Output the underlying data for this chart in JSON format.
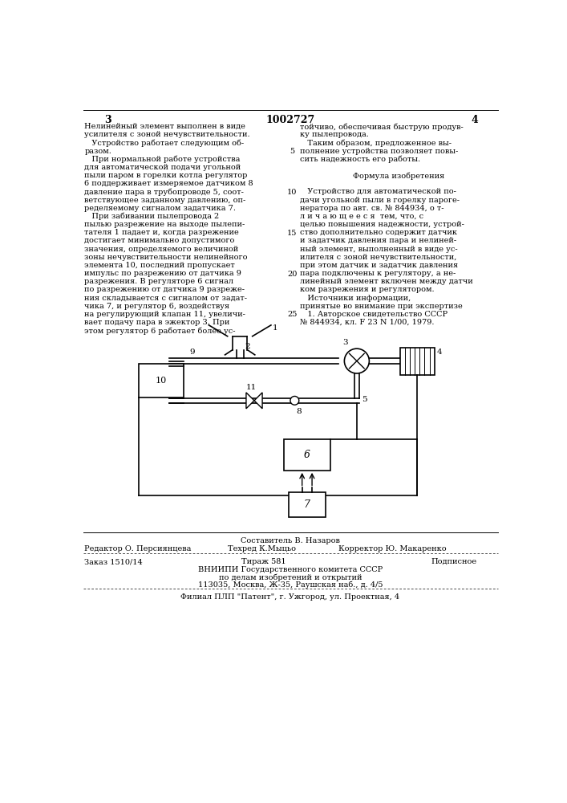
{
  "bg_color": "#ffffff",
  "page_number_left": "3",
  "page_number_center": "1002727",
  "page_number_right": "4",
  "col1_lines": [
    "Нелинейный элемент выполнен в виде",
    "усилителя с зоной нечувствительности.",
    "   Устройство работает следующим об-",
    "разом.",
    "   При нормальной работе устройства",
    "для автоматической подачи угольной",
    "пыли паром в горелки котла регулятор",
    "6 поддерживает измеряемое датчиком 8",
    "давление пара в трубопроводе 5, соот-",
    "ветствующее заданному давлению, оп-",
    "ределяемому сигналом задатчика 7.",
    "   При забивании пылепровода 2",
    "пылью разрежение на выходе пылепи-",
    "тателя 1 падает и, когда разрежение",
    "достигает минимально допустимого",
    "значения, определяемого величиной",
    "зоны нечувствительности нелинейного",
    "элемента 10, последний пропускает",
    "импульс по разрежению от датчика 9",
    "разрежения. В регуляторе 6 сигнал",
    "по разрежению от датчика 9 разреже-",
    "ния складывается с сигналом от задат-",
    "чика 7, и регулятор 6, воздействуя",
    "на регулирующий клапан 11, увеличи-",
    "вает подачу пара в эжектор 3. При",
    "этом регулятор 6 работает более ус-"
  ],
  "col2_lines": [
    "тойчиво, обеспечивая быструю продув-",
    "ку пылепровода.",
    "   Таким образом, предложенное вы-",
    "полнение устройства позволяет повы-",
    "сить надежность его работы.",
    "",
    "Формула изобретения",
    "",
    "   Устройство для автоматической по-",
    "дачи угольной пыли в горелку парогe-",
    "нератора по авт. св. № 844934, о т-",
    "л и ч а ю щ е е с я  тем, что, с",
    "целью повышения надежности, устрой-",
    "ство дополнительно содержит датчик",
    "и задатчик давления пара и нелиней-",
    "ный элемент, выполненный в виде ус-",
    "илителя с зоной нечувствительности,",
    "при этом датчик и задатчик давления",
    "пара подключены к регулятору, а не-",
    "линейный элемент включен между датчи",
    "ком разрежения и регулятором.",
    "   Источники информации,",
    "принятые во внимание при экспертизе",
    "   1. Авторское свидетельство СССР",
    "№ 844934, кл. F 23 N 1/00, 1979."
  ],
  "line_numbers": [
    "5",
    "10",
    "15",
    "20",
    "25"
  ],
  "line_number_rows": [
    4,
    9,
    14,
    19,
    24
  ],
  "footer_composer": "Составитель В. Назаров",
  "footer_editor": "Редактор О. Персиянцева",
  "footer_techred": "Техред К.Мыцьо",
  "footer_corrector": "Корректор Ю. Макаренко",
  "footer_order": "Заказ 1510/14",
  "footer_tirazh": "Тираж 581",
  "footer_podpisnoe": "Подписное",
  "footer_vniiipi": "ВНИИПИ Государственного комитета СССР",
  "footer_vniiipi2": "по делам изобретений и открытий",
  "footer_address": "113035, Москва, Ж-35, Раушская наб., д. 4/5",
  "footer_filial": "Филиал ПЛП \"Патент\", г. Ужгород, ул. Проектная, 4"
}
